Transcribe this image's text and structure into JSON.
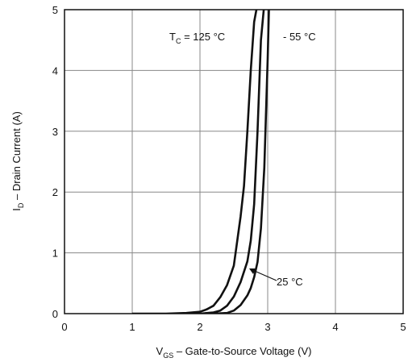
{
  "chart_data": {
    "type": "line",
    "xlabel": {
      "main": "V",
      "sub": "GS",
      "rest": " – Gate-to-Source Voltage (V)"
    },
    "ylabel": {
      "main": "I",
      "sub": "D",
      "rest": " – Drain Current (A)"
    },
    "xlim": [
      0,
      5
    ],
    "ylim": [
      0,
      5
    ],
    "xticks": [
      "0",
      "1",
      "2",
      "3",
      "4",
      "5"
    ],
    "yticks": [
      "0",
      "1",
      "2",
      "3",
      "4",
      "5"
    ],
    "grid": true,
    "series": [
      {
        "name": "125 °C",
        "x": [
          1.0,
          1.5,
          1.8,
          2.0,
          2.1,
          2.2,
          2.3,
          2.4,
          2.5,
          2.6,
          2.65,
          2.7,
          2.75,
          2.8,
          2.85
        ],
        "y": [
          0.0,
          0.0,
          0.01,
          0.03,
          0.07,
          0.13,
          0.27,
          0.47,
          0.79,
          1.6,
          2.1,
          3.0,
          4.0,
          4.8,
          5.1
        ]
      },
      {
        "name": "25 °C",
        "x": [
          1.8,
          2.0,
          2.2,
          2.3,
          2.4,
          2.5,
          2.6,
          2.7,
          2.75,
          2.8,
          2.85,
          2.9,
          2.95
        ],
        "y": [
          0.0,
          0.0,
          0.02,
          0.05,
          0.13,
          0.28,
          0.52,
          0.86,
          1.2,
          1.8,
          3.0,
          4.5,
          5.1
        ]
      },
      {
        "name": "- 55 °C",
        "x": [
          2.2,
          2.4,
          2.5,
          2.6,
          2.7,
          2.75,
          2.8,
          2.85,
          2.9,
          2.95,
          3.0,
          3.02
        ],
        "y": [
          0.0,
          0.01,
          0.05,
          0.14,
          0.3,
          0.42,
          0.6,
          0.85,
          1.4,
          2.4,
          4.2,
          5.1
        ]
      }
    ],
    "annotations": {
      "tc_label": {
        "main": "T",
        "sub": "C",
        "rest": " = 125 °C"
      },
      "minus55_label": "- 55 °C",
      "label_25": "25 °C"
    }
  }
}
